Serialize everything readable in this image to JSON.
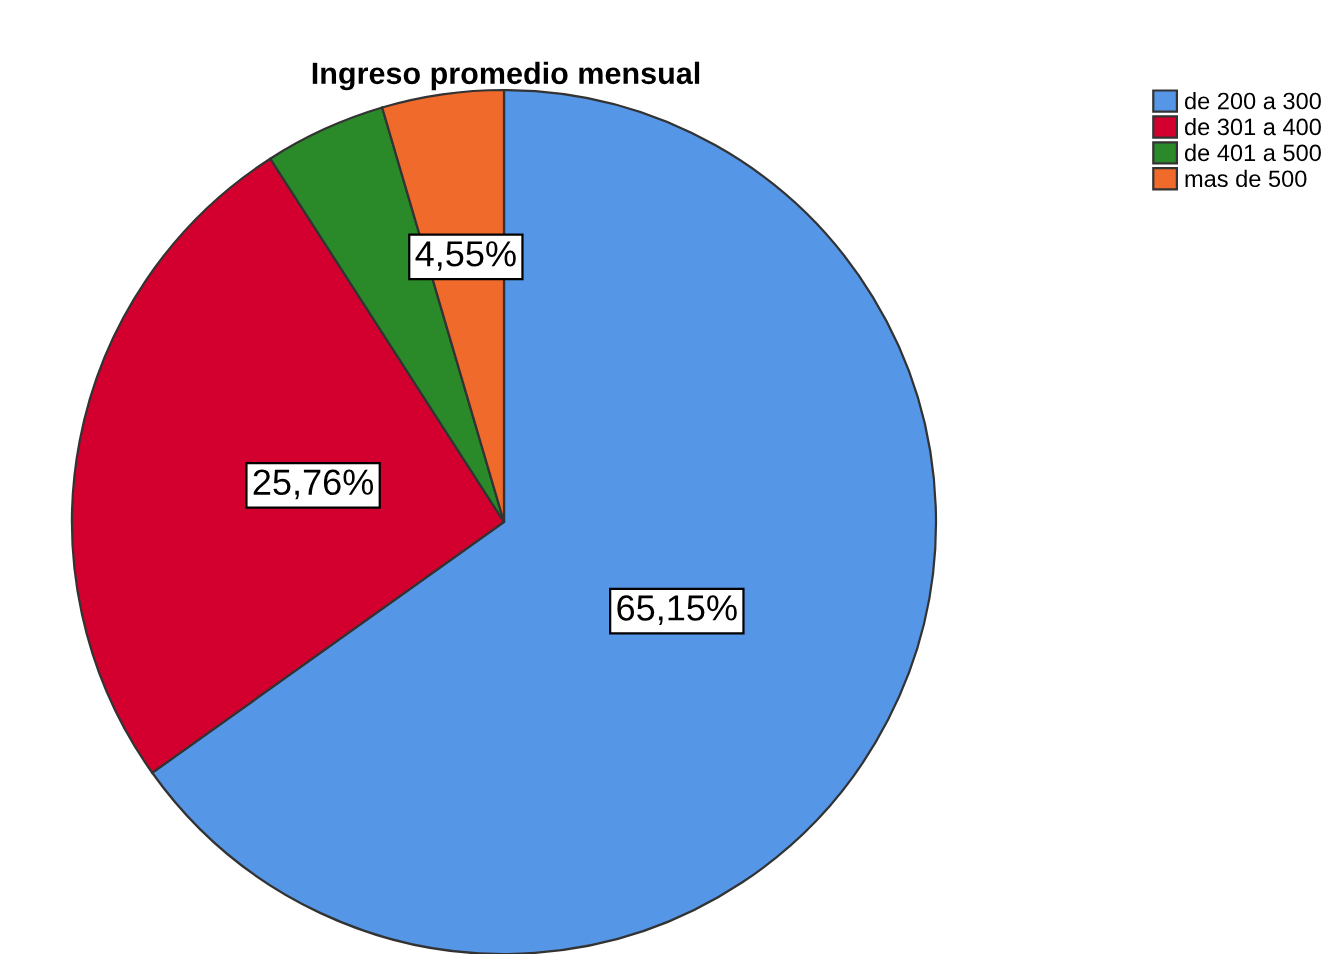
{
  "chart_data": {
    "type": "pie",
    "title": "Ingreso promedio mensual",
    "categories": [
      "de 200 a 300",
      "de 301 a 400",
      "de 401 a 500",
      "mas de 500"
    ],
    "values": [
      65.15,
      25.76,
      4.55,
      4.55
    ],
    "colors": [
      "#5596e6",
      "#d3002f",
      "#2a8a2a",
      "#f06a2c"
    ],
    "value_labels": [
      "65,15%",
      "25,76%",
      null,
      "4,55%"
    ],
    "legend": "top right"
  }
}
